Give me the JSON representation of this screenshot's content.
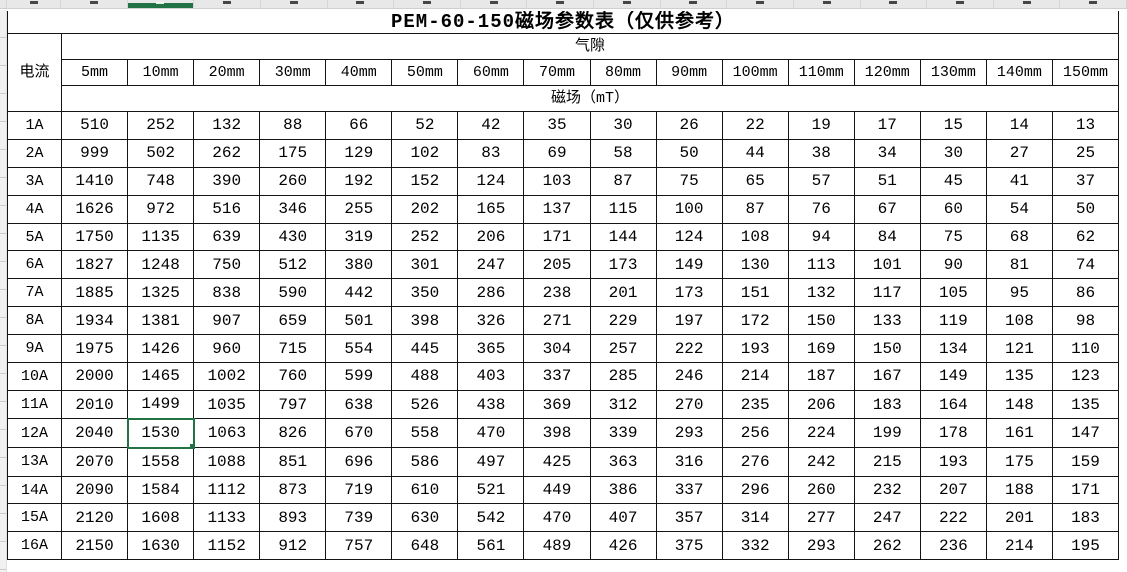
{
  "spreadsheet": {
    "selected": {
      "row_label": "12A",
      "column": "10mm",
      "value": "1530"
    },
    "colors": {
      "selection_green": "#217346"
    }
  },
  "chart_data": {
    "type": "table",
    "title": "PEM-60-150磁场参数表（仅供参考）",
    "corner_label": "电流",
    "group_header": "气隙",
    "unit_header": "磁场（mT）",
    "columns": [
      "5mm",
      "10mm",
      "20mm",
      "30mm",
      "40mm",
      "50mm",
      "60mm",
      "70mm",
      "80mm",
      "90mm",
      "100mm",
      "110mm",
      "120mm",
      "130mm",
      "140mm",
      "150mm"
    ],
    "rows": [
      {
        "label": "1A",
        "values": [
          510,
          252,
          132,
          88,
          66,
          52,
          42,
          35,
          30,
          26,
          22,
          19,
          17,
          15,
          14,
          13
        ]
      },
      {
        "label": "2A",
        "values": [
          999,
          502,
          262,
          175,
          129,
          102,
          83,
          69,
          58,
          50,
          44,
          38,
          34,
          30,
          27,
          25
        ]
      },
      {
        "label": "3A",
        "values": [
          1410,
          748,
          390,
          260,
          192,
          152,
          124,
          103,
          87,
          75,
          65,
          57,
          51,
          45,
          41,
          37
        ]
      },
      {
        "label": "4A",
        "values": [
          1626,
          972,
          516,
          346,
          255,
          202,
          165,
          137,
          115,
          100,
          87,
          76,
          67,
          60,
          54,
          50
        ]
      },
      {
        "label": "5A",
        "values": [
          1750,
          1135,
          639,
          430,
          319,
          252,
          206,
          171,
          144,
          124,
          108,
          94,
          84,
          75,
          68,
          62
        ]
      },
      {
        "label": "6A",
        "values": [
          1827,
          1248,
          750,
          512,
          380,
          301,
          247,
          205,
          173,
          149,
          130,
          113,
          101,
          90,
          81,
          74
        ]
      },
      {
        "label": "7A",
        "values": [
          1885,
          1325,
          838,
          590,
          442,
          350,
          286,
          238,
          201,
          173,
          151,
          132,
          117,
          105,
          95,
          86
        ]
      },
      {
        "label": "8A",
        "values": [
          1934,
          1381,
          907,
          659,
          501,
          398,
          326,
          271,
          229,
          197,
          172,
          150,
          133,
          119,
          108,
          98
        ]
      },
      {
        "label": "9A",
        "values": [
          1975,
          1426,
          960,
          715,
          554,
          445,
          365,
          304,
          257,
          222,
          193,
          169,
          150,
          134,
          121,
          110
        ]
      },
      {
        "label": "10A",
        "values": [
          2000,
          1465,
          1002,
          760,
          599,
          488,
          403,
          337,
          285,
          246,
          214,
          187,
          167,
          149,
          135,
          123
        ]
      },
      {
        "label": "11A",
        "values": [
          2010,
          1499,
          1035,
          797,
          638,
          526,
          438,
          369,
          312,
          270,
          235,
          206,
          183,
          164,
          148,
          135
        ]
      },
      {
        "label": "12A",
        "values": [
          2040,
          1530,
          1063,
          826,
          670,
          558,
          470,
          398,
          339,
          293,
          256,
          224,
          199,
          178,
          161,
          147
        ]
      },
      {
        "label": "13A",
        "values": [
          2070,
          1558,
          1088,
          851,
          696,
          586,
          497,
          425,
          363,
          316,
          276,
          242,
          215,
          193,
          175,
          159
        ]
      },
      {
        "label": "14A",
        "values": [
          2090,
          1584,
          1112,
          873,
          719,
          610,
          521,
          449,
          386,
          337,
          296,
          260,
          232,
          207,
          188,
          171
        ]
      },
      {
        "label": "15A",
        "values": [
          2120,
          1608,
          1133,
          893,
          739,
          630,
          542,
          470,
          407,
          357,
          314,
          277,
          247,
          222,
          201,
          183
        ]
      },
      {
        "label": "16A",
        "values": [
          2150,
          1630,
          1152,
          912,
          757,
          648,
          561,
          489,
          426,
          375,
          332,
          293,
          262,
          236,
          214,
          195
        ]
      }
    ]
  }
}
